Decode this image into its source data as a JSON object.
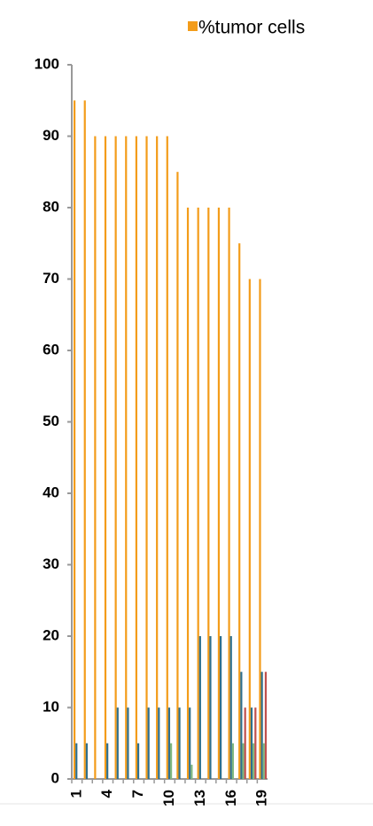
{
  "chart_data": {
    "type": "bar",
    "categories": [
      "1",
      null,
      null,
      "4",
      null,
      null,
      "7",
      null,
      null,
      "10",
      null,
      null,
      "13",
      null,
      null,
      "16",
      null,
      null,
      "19"
    ],
    "series": [
      {
        "name": "%tumor cells",
        "color": "#f39c1a",
        "values": [
          95,
          95,
          90,
          90,
          90,
          90,
          90,
          90,
          90,
          90,
          85,
          80,
          80,
          80,
          80,
          80,
          75,
          70,
          70
        ]
      },
      {
        "color": "#2e6f8e",
        "values": [
          5,
          5,
          null,
          5,
          10,
          10,
          5,
          10,
          10,
          10,
          10,
          10,
          20,
          20,
          20,
          20,
          15,
          10,
          15
        ]
      },
      {
        "color": "#7fb77e",
        "values": [
          null,
          null,
          null,
          null,
          null,
          null,
          null,
          null,
          null,
          5,
          null,
          2,
          null,
          null,
          null,
          5,
          5,
          5,
          5
        ]
      },
      {
        "color": "#c0504d",
        "values": [
          null,
          null,
          null,
          null,
          null,
          null,
          null,
          null,
          null,
          null,
          null,
          null,
          null,
          null,
          null,
          null,
          10,
          10,
          15
        ]
      }
    ],
    "ylim": [
      0,
      100
    ],
    "yticks": [
      0,
      10,
      20,
      30,
      40,
      50,
      60,
      70,
      80,
      90,
      100
    ]
  }
}
